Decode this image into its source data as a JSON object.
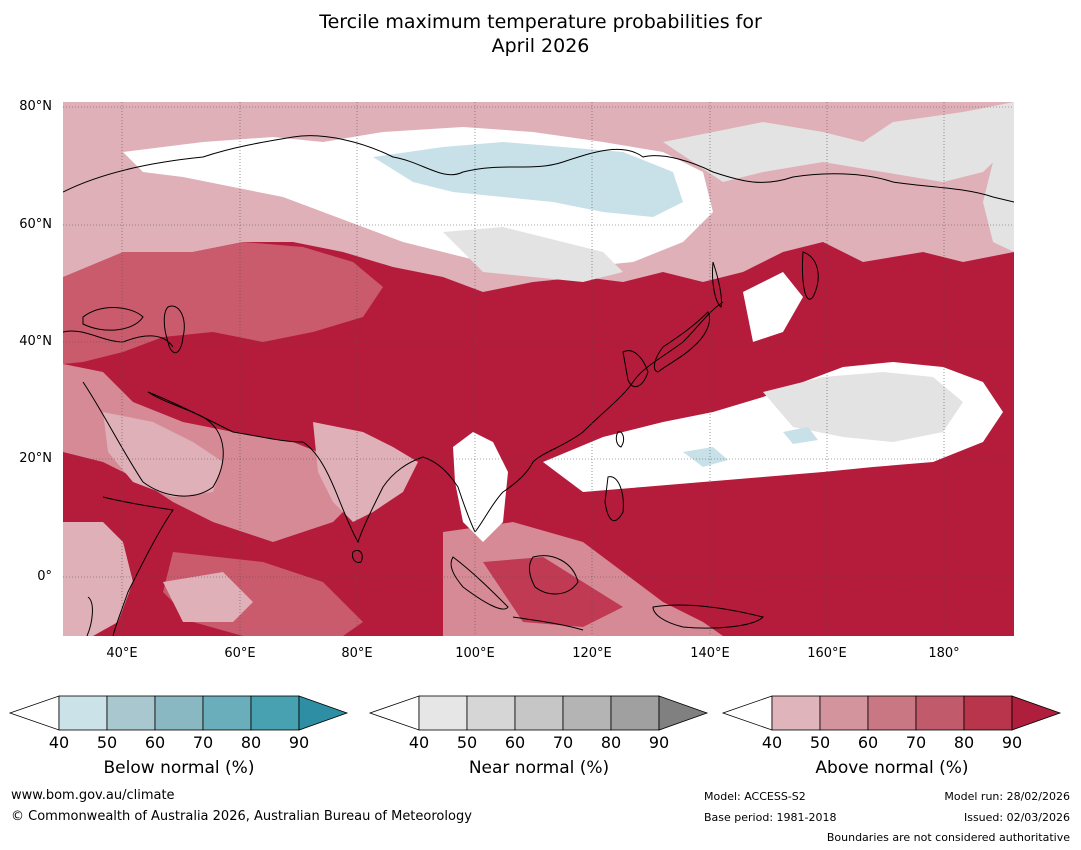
{
  "title_line1": "Tercile maximum temperature probabilities for",
  "title_line2": "April 2026",
  "lat_labels": [
    "80°N",
    "60°N",
    "40°N",
    "20°N",
    "0°"
  ],
  "lon_labels": [
    "40°E",
    "60°E",
    "80°E",
    "100°E",
    "120°E",
    "140°E",
    "160°E",
    "180°"
  ],
  "colorbars": [
    {
      "title": "Below normal (%)",
      "ticks": [
        "40",
        "50",
        "60",
        "70",
        "80",
        "90"
      ],
      "colors": [
        "#ffffff",
        "#cbe2e8",
        "#a8c7cf",
        "#89b8c2",
        "#6aaebb",
        "#47a1b0",
        "#2e8ea3"
      ]
    },
    {
      "title": "Near normal (%)",
      "ticks": [
        "40",
        "50",
        "60",
        "70",
        "80",
        "90"
      ],
      "colors": [
        "#ffffff",
        "#e6e6e6",
        "#d6d6d6",
        "#c6c6c6",
        "#b4b4b4",
        "#a0a0a0",
        "#808080"
      ]
    },
    {
      "title": "Above normal (%)",
      "ticks": [
        "40",
        "50",
        "60",
        "70",
        "80",
        "90"
      ],
      "colors": [
        "#ffffff",
        "#e0b4bb",
        "#d3949d",
        "#c97783",
        "#c15a6b",
        "#b8354c",
        "#b01e3d"
      ]
    }
  ],
  "footer": {
    "website": "www.bom.gov.au/climate",
    "copyright": "© Commonwealth of Australia 2026, Australian Bureau of Meteorology",
    "model": "Model: ACCESS-S2",
    "base_period": "Base period: 1981-2018",
    "model_run": "Model run: 28/02/2026",
    "issued": "Issued: 02/03/2026",
    "disclaimer": "Boundaries are not considered authoritative"
  },
  "map_colors": {
    "above_90": "#b51b3a",
    "above_80": "#bf3a52",
    "above_70": "#c95b6c",
    "above_60": "#d68a95",
    "above_50": "#dfb0b8",
    "neutral": "#ffffff",
    "near_50": "#e3e3e3",
    "below_50": "#c8e0e7"
  }
}
